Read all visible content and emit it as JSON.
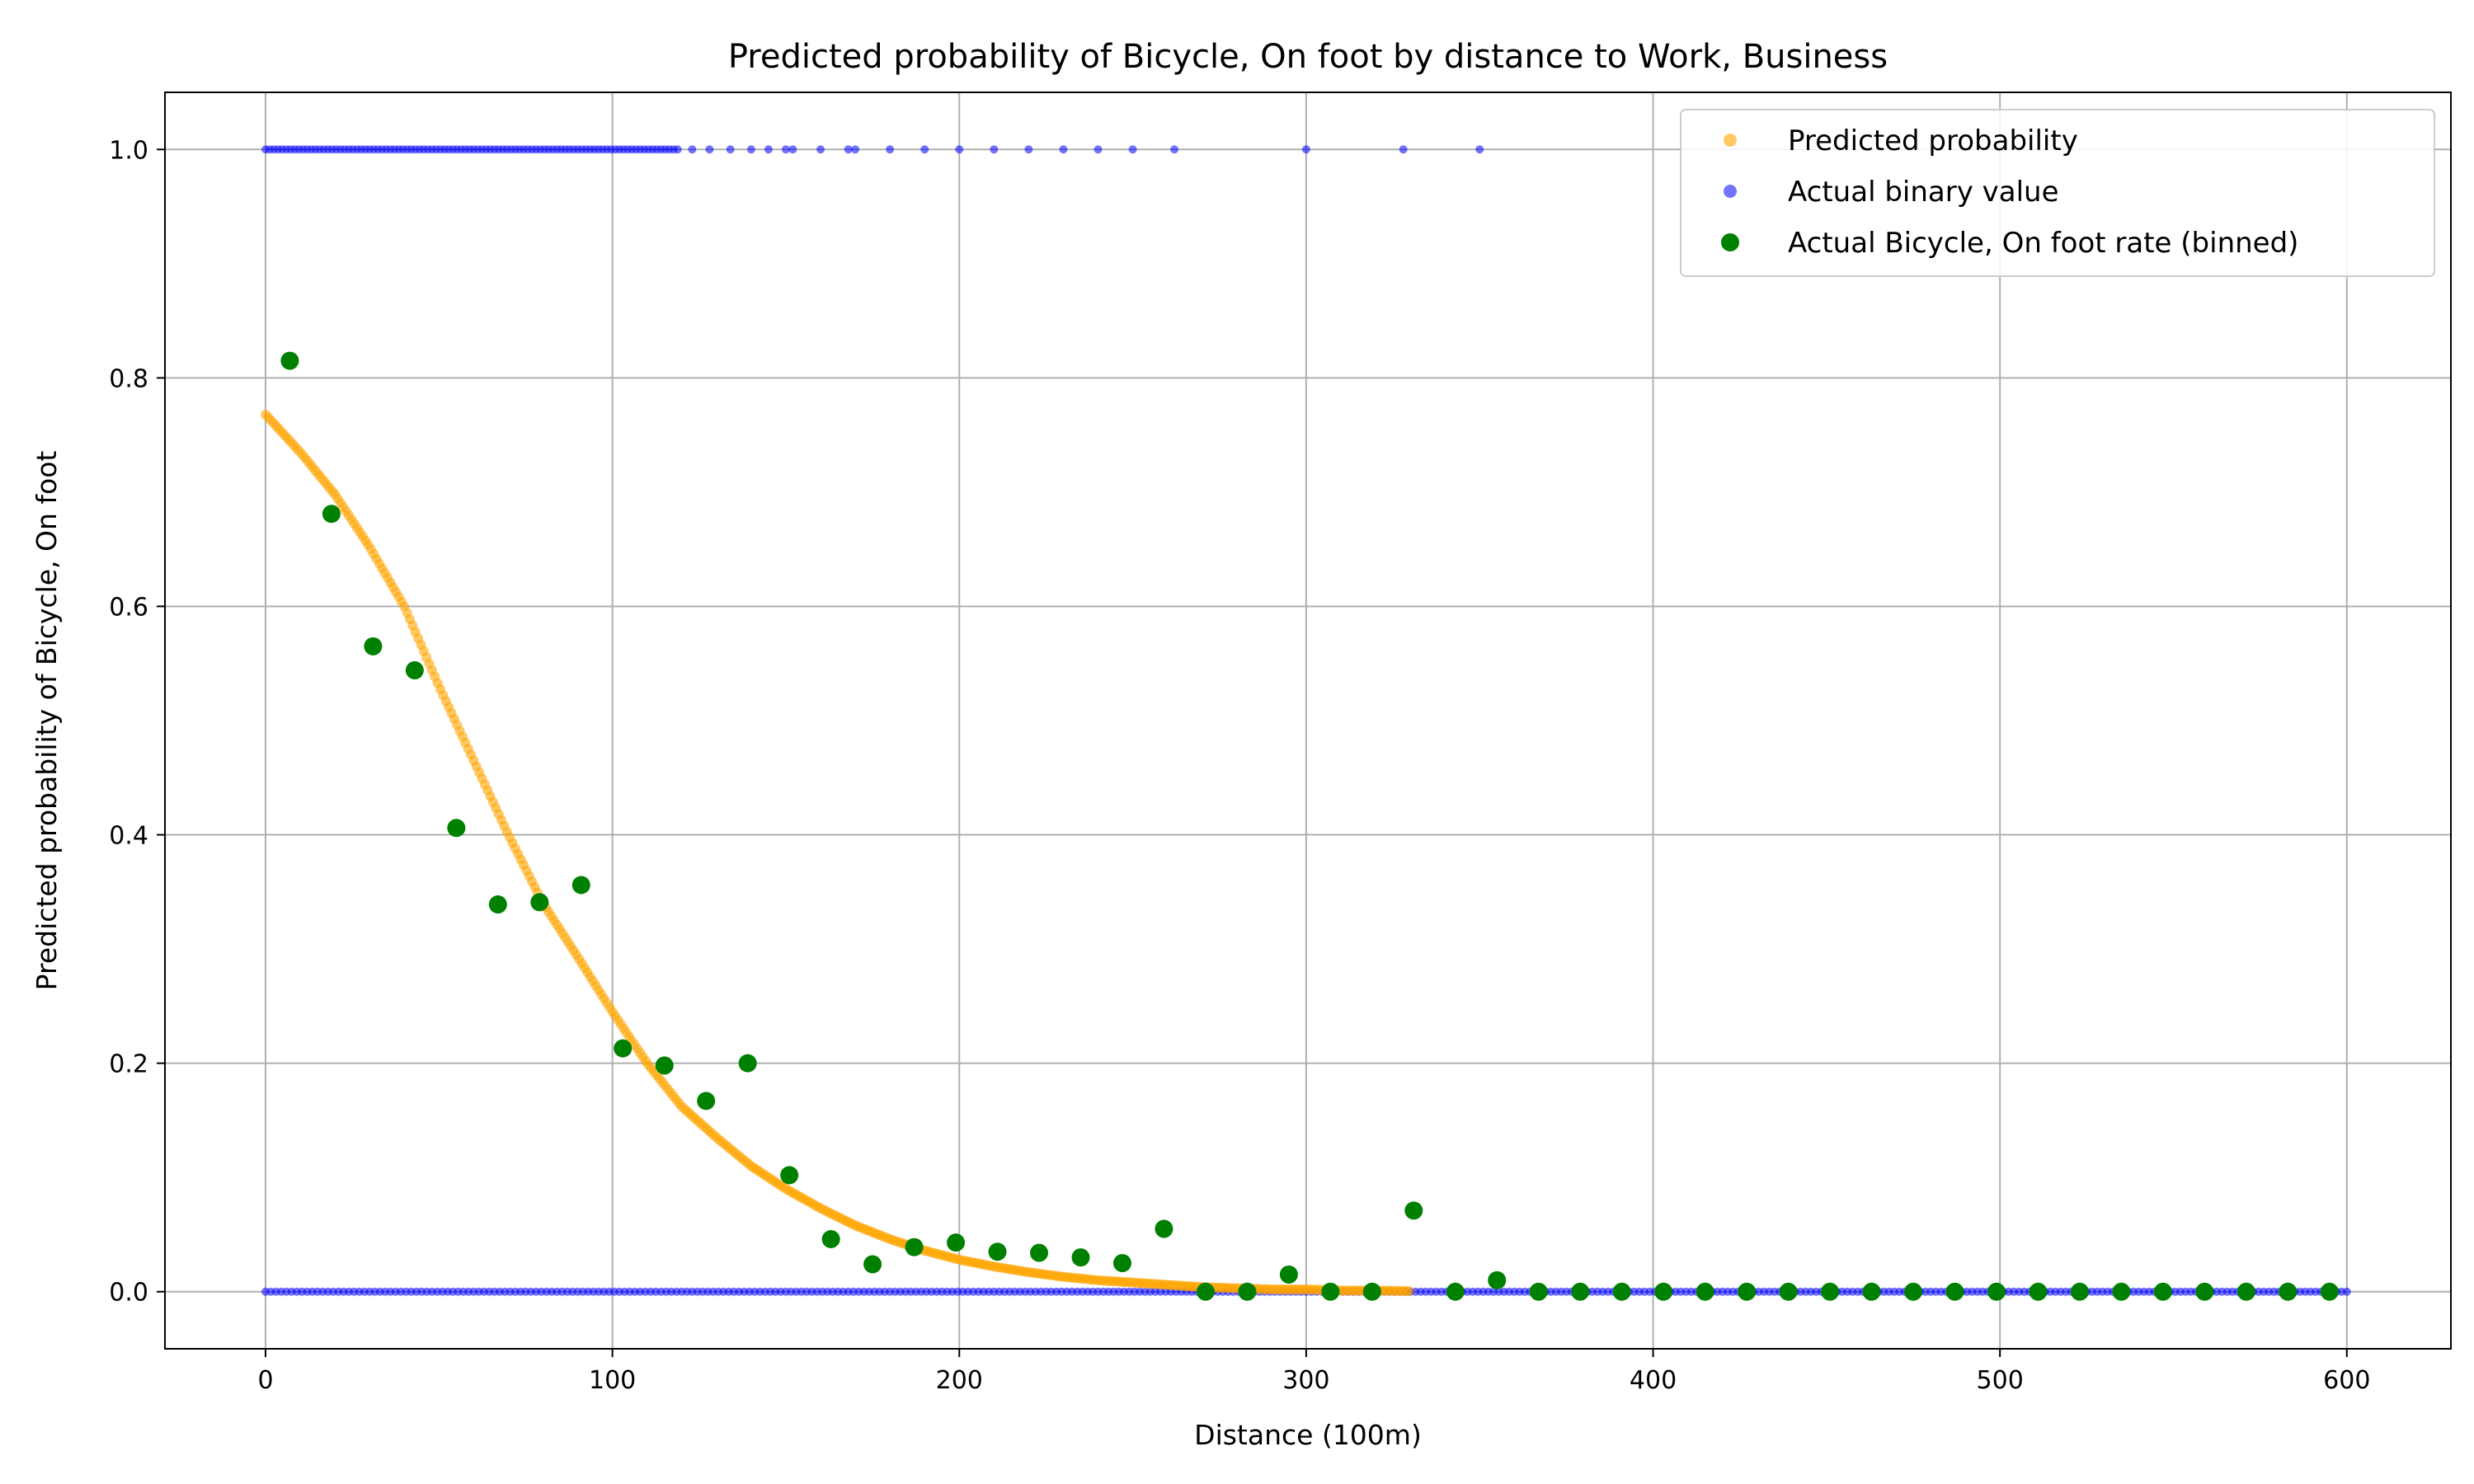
{
  "chart_data": {
    "type": "scatter",
    "title": "Predicted probability of Bicycle, On foot by distance to Work, Business",
    "xlabel": "Distance (100m)",
    "ylabel": "Predicted probability of Bicycle, On foot",
    "xlim": [
      -29,
      630
    ],
    "ylim": [
      -0.05,
      1.05
    ],
    "x_ticks": [
      0,
      100,
      200,
      300,
      400,
      500,
      600
    ],
    "y_ticks": [
      0.0,
      0.2,
      0.4,
      0.6,
      0.8,
      1.0
    ],
    "x_tick_labels": [
      "0",
      "100",
      "200",
      "300",
      "400",
      "500",
      "600"
    ],
    "y_tick_labels": [
      "0.0",
      "0.2",
      "0.4",
      "0.6",
      "0.8",
      "1.0"
    ],
    "grid": true,
    "legend_position": "top-right",
    "series": [
      {
        "name": "Predicted probability",
        "color": "#ffa500",
        "alpha": 0.6,
        "curve": {
          "x_range": [
            0,
            330
          ],
          "points": [
            [
              0,
              0.768
            ],
            [
              10,
              0.735
            ],
            [
              20,
              0.698
            ],
            [
              30,
              0.652
            ],
            [
              40,
              0.6
            ],
            [
              50,
              0.53
            ],
            [
              60,
              0.465
            ],
            [
              70,
              0.4
            ],
            [
              80,
              0.34
            ],
            [
              90,
              0.293
            ],
            [
              100,
              0.245
            ],
            [
              110,
              0.2
            ],
            [
              120,
              0.162
            ],
            [
              130,
              0.135
            ],
            [
              140,
              0.11
            ],
            [
              150,
              0.09
            ],
            [
              160,
              0.073
            ],
            [
              170,
              0.058
            ],
            [
              180,
              0.046
            ],
            [
              190,
              0.036
            ],
            [
              200,
              0.028
            ],
            [
              210,
              0.022
            ],
            [
              220,
              0.017
            ],
            [
              230,
              0.013
            ],
            [
              240,
              0.01
            ],
            [
              250,
              0.008
            ],
            [
              260,
              0.006
            ],
            [
              270,
              0.004
            ],
            [
              280,
              0.003
            ],
            [
              290,
              0.002
            ],
            [
              300,
              0.002
            ],
            [
              310,
              0.001
            ],
            [
              320,
              0.001
            ],
            [
              330,
              0.0005
            ]
          ]
        }
      },
      {
        "name": "Actual binary value",
        "color": "#0000ff",
        "alpha": 0.55,
        "ones_dense_range": [
          0,
          120
        ],
        "ones_sparse": [
          123,
          128,
          134,
          140,
          145,
          150,
          152,
          160,
          168,
          170,
          180,
          190,
          200,
          210,
          220,
          230,
          240,
          250,
          262,
          300,
          328,
          350
        ],
        "zeros_dense_range": [
          0,
          600
        ],
        "zeros_sparse": []
      },
      {
        "name": "Actual Bicycle, On foot rate (binned)",
        "color": "#008000",
        "x": [
          7,
          19,
          31,
          43,
          55,
          67,
          79,
          91,
          103,
          115,
          127,
          139,
          151,
          163,
          175,
          187,
          199,
          211,
          223,
          235,
          247,
          259,
          271,
          283,
          295,
          307,
          319,
          331,
          343,
          355,
          367,
          379,
          391,
          403,
          415,
          427,
          439,
          451,
          463,
          475,
          487,
          499,
          511,
          523,
          535,
          547,
          559,
          571,
          583,
          595
        ],
        "y": [
          0.815,
          0.681,
          0.565,
          0.544,
          0.406,
          0.339,
          0.341,
          0.356,
          0.213,
          0.198,
          0.167,
          0.2,
          0.102,
          0.046,
          0.024,
          0.039,
          0.043,
          0.035,
          0.034,
          0.03,
          0.025,
          0.055,
          0.0,
          0.0,
          0.015,
          0.0,
          0.0,
          0.071,
          0.0,
          0.01,
          0.0,
          0.0,
          0.0,
          0.0,
          0.0,
          0.0,
          0.0,
          0.0,
          0.0,
          0.0,
          0.0,
          0.0,
          0.0,
          0.0,
          0.0,
          0.0,
          0.0,
          0.0,
          0.0,
          0.0
        ]
      }
    ]
  }
}
